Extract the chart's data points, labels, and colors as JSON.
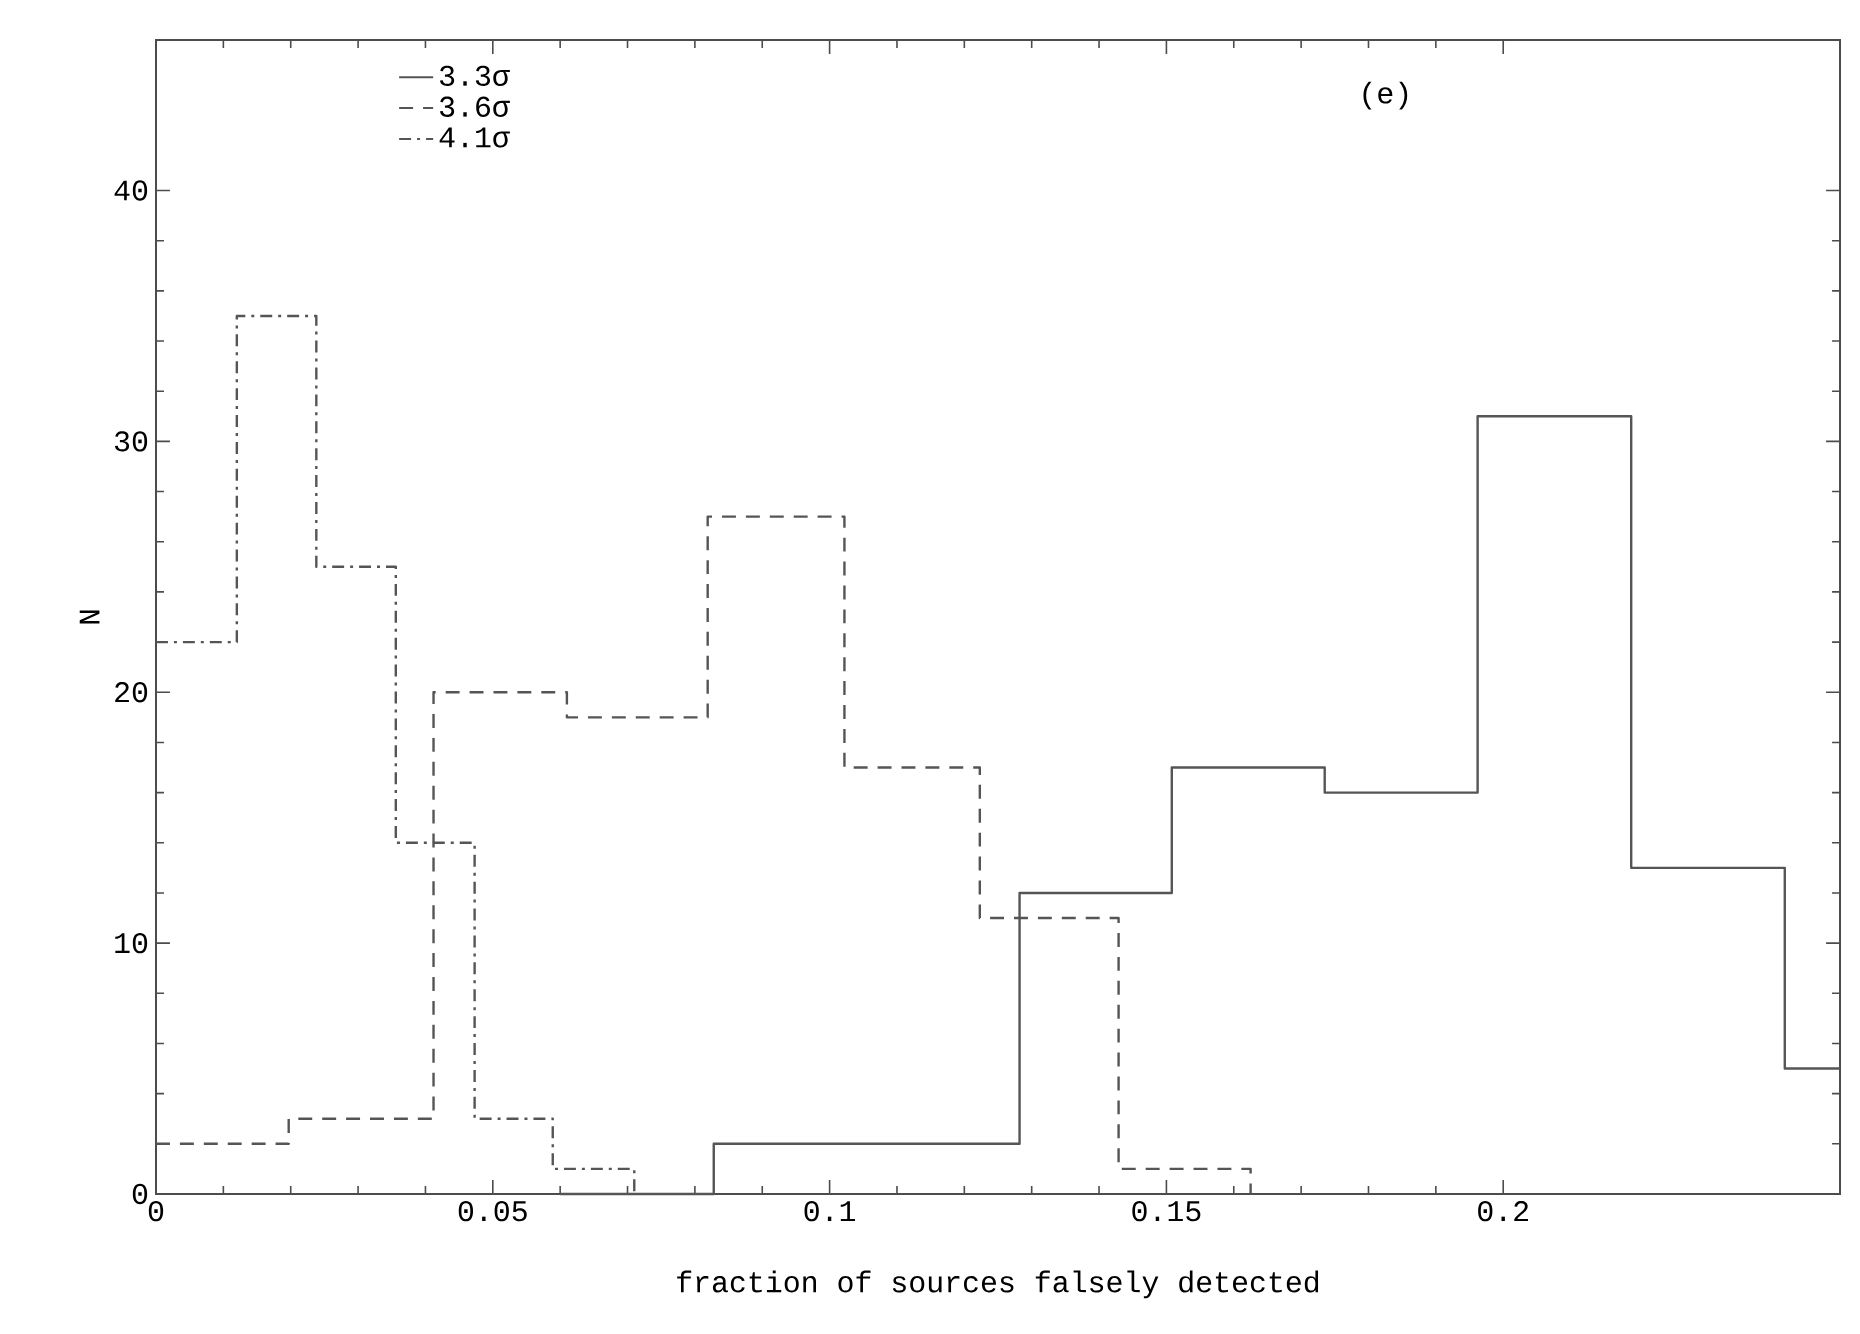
{
  "chart_data": {
    "type": "step",
    "title": "(e)",
    "xlabel": "fraction of sources falsely detected",
    "ylabel": "N",
    "xlim": [
      0,
      0.25
    ],
    "ylim": [
      0,
      46
    ],
    "xticks": [
      0,
      0.05,
      0.1,
      0.15,
      0.2
    ],
    "yticks": [
      0,
      10,
      20,
      30,
      40
    ],
    "legend": "top left",
    "grid": false,
    "series": [
      {
        "name": "3.3σ",
        "color": "#555555",
        "line_style": "solid",
        "x": [
          0.06,
          0.0828,
          0.1055,
          0.1282,
          0.1508,
          0.1735,
          0.1962,
          0.219,
          0.2418,
          0.25
        ],
        "values": [
          0,
          2,
          2,
          12,
          17,
          16,
          31,
          13,
          5,
          5
        ]
      },
      {
        "name": "3.6σ",
        "color": "#555555",
        "line_style": "dashed",
        "x": [
          0,
          0.0197,
          0.0412,
          0.061,
          0.0819,
          0.1022,
          0.1223,
          0.1429,
          0.1625
        ],
        "values": [
          2,
          3,
          20,
          19,
          27,
          17,
          11,
          1,
          0
        ]
      },
      {
        "name": "4.1σ",
        "color": "#555555",
        "line_style": "dashdot",
        "x": [
          0,
          0.012,
          0.0238,
          0.0356,
          0.0473,
          0.0589,
          0.071
        ],
        "values": [
          22,
          35,
          25,
          14,
          3,
          1,
          0
        ]
      }
    ]
  }
}
